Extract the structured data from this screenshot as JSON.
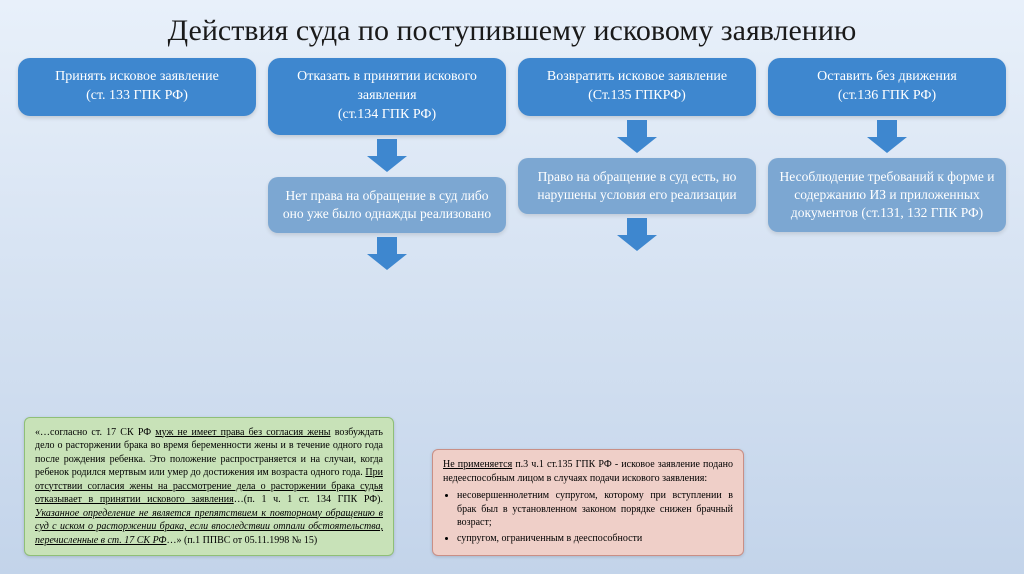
{
  "title": "Действия суда по поступившему исковому заявлению",
  "cols": [
    {
      "top": "Принять исковое заявление\n(ст. 133 ГПК РФ)"
    },
    {
      "top": "Отказать в принятии искового заявления\n(ст.134 ГПК РФ)",
      "mid": "Нет права на обращение в суд либо оно уже было однажды реализовано"
    },
    {
      "top": "Возвратить исковое заявление\n(Ст.135 ГПКРФ)",
      "mid": "Право на обращение в суд есть, но нарушены условия его реализации"
    },
    {
      "top": "Оставить без движения\n(ст.136 ГПК РФ)",
      "mid": "Несоблюдение требований к форме и содержанию ИЗ и приложенных документов (ст.131, 132 ГПК РФ)"
    }
  ],
  "green_note": {
    "p1_a": "«…согласно ст. 17 СК РФ ",
    "p1_u1": "муж не имеет права без согласия жены",
    "p1_b": " возбуждать дело о расторжении брака во время беременности жены и в течение одного года после рождения ребенка. Это положение распространяется и на случаи, когда ребенок родился мертвым или умер до достижения им возраста одного года. ",
    "p1_u2": "При отсутствии согласия жены на рассмотрение дела о расторжении брака судья отказывает в принятии искового заявления",
    "p1_c": "…(п. 1 ч. 1 ст. 134 ГПК РФ). ",
    "p1_iu": "Указанное определение не является препятствием к повторному обращению в суд с иском о расторжении брака, если впоследствии отпали обстоятельства, перечисленные в ст. 17 СК РФ",
    "p1_d": "…» (п.1 ППВС от 05.11.1998 № 15)"
  },
  "red_note": {
    "head_u": "Не применяется",
    "head_rest": " п.3 ч.1 ст.135 ГПК РФ - исковое заявление подано недееспособным лицом в случаях подачи искового заявления:",
    "li1": "несовершеннолетним супругом, которому при вступлении в брак был в установленном законом порядке снижен брачный возраст;",
    "li2": "супругом, ограниченным в дееспособности"
  },
  "colors": {
    "primary": "#3e87cf",
    "secondary": "#7ca7d2",
    "green_bg": "#c8e2b8",
    "red_bg": "#efcfc8"
  }
}
